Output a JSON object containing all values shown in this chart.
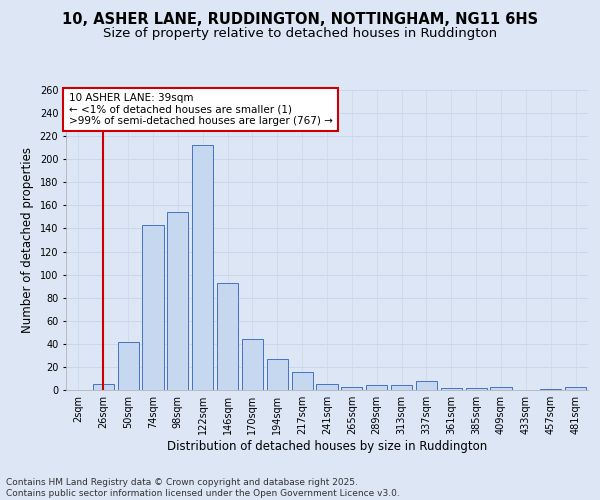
{
  "title_line1": "10, ASHER LANE, RUDDINGTON, NOTTINGHAM, NG11 6HS",
  "title_line2": "Size of property relative to detached houses in Ruddington",
  "xlabel": "Distribution of detached houses by size in Ruddington",
  "ylabel": "Number of detached properties",
  "categories": [
    "2sqm",
    "26sqm",
    "50sqm",
    "74sqm",
    "98sqm",
    "122sqm",
    "146sqm",
    "170sqm",
    "194sqm",
    "217sqm",
    "241sqm",
    "265sqm",
    "289sqm",
    "313sqm",
    "337sqm",
    "361sqm",
    "385sqm",
    "409sqm",
    "433sqm",
    "457sqm",
    "481sqm"
  ],
  "values": [
    0,
    5,
    42,
    143,
    154,
    212,
    93,
    44,
    27,
    16,
    5,
    3,
    4,
    4,
    8,
    2,
    2,
    3,
    0,
    1,
    3
  ],
  "bar_color": "#c5d8f0",
  "bar_edge_color": "#4472c4",
  "grid_color": "#c8d8ec",
  "bg_color": "#dce6f5",
  "annotation_box_text": "10 ASHER LANE: 39sqm\n← <1% of detached houses are smaller (1)\n>99% of semi-detached houses are larger (767) →",
  "annotation_box_color": "#ffffff",
  "annotation_box_edge_color": "#cc0000",
  "annotation_text_color": "#000000",
  "vline_x_index": 1,
  "vline_color": "#cc0000",
  "ylim": [
    0,
    260
  ],
  "yticks": [
    0,
    20,
    40,
    60,
    80,
    100,
    120,
    140,
    160,
    180,
    200,
    220,
    240,
    260
  ],
  "footer_line1": "Contains HM Land Registry data © Crown copyright and database right 2025.",
  "footer_line2": "Contains public sector information licensed under the Open Government Licence v3.0.",
  "title_fontsize": 10.5,
  "subtitle_fontsize": 9.5,
  "axis_label_fontsize": 8.5,
  "tick_fontsize": 7,
  "annotation_fontsize": 7.5,
  "footer_fontsize": 6.5
}
